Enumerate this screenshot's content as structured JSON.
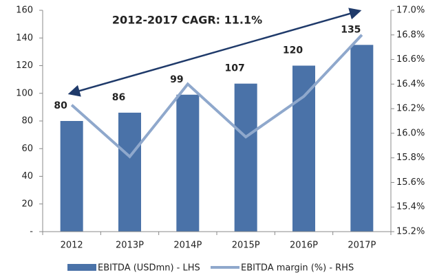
{
  "chart_data": {
    "type": "bar",
    "annotation": "2012-2017 CAGR: 11.1%",
    "categories": [
      "2012",
      "2013P",
      "2014P",
      "2015P",
      "2016P",
      "2017P"
    ],
    "series": [
      {
        "name": "EBITDA (USDmn) - LHS",
        "color": "#4a72a8",
        "type": "bar",
        "values": [
          80,
          86,
          99,
          107,
          120,
          135
        ]
      },
      {
        "name": "EBITDA margin (%) - RHS",
        "color": "#8fa8cc",
        "type": "line",
        "axis": "y2",
        "values": [
          16.23,
          15.81,
          16.4,
          15.97,
          16.3,
          16.8
        ]
      }
    ],
    "ylim": [
      0,
      160
    ],
    "yticks": [
      {
        "value": 0,
        "label": "-"
      },
      20,
      40,
      60,
      80,
      100,
      120,
      140,
      160
    ],
    "y2lim": [
      15.2,
      17.0
    ],
    "y2ticks": [
      {
        "value": 15.2,
        "label": "15.2%"
      },
      {
        "value": 15.4,
        "label": "15.4%"
      },
      {
        "value": 15.6,
        "label": "15.6%"
      },
      {
        "value": 15.8,
        "label": "15.8%"
      },
      {
        "value": 16.0,
        "label": "16.0%"
      },
      {
        "value": 16.2,
        "label": "16.2%"
      },
      {
        "value": 16.4,
        "label": "16.4%"
      },
      {
        "value": 16.6,
        "label": "16.6%"
      },
      {
        "value": 16.8,
        "label": "16.8%"
      },
      {
        "value": 17.0,
        "label": "17.0%"
      }
    ],
    "grid": false
  }
}
